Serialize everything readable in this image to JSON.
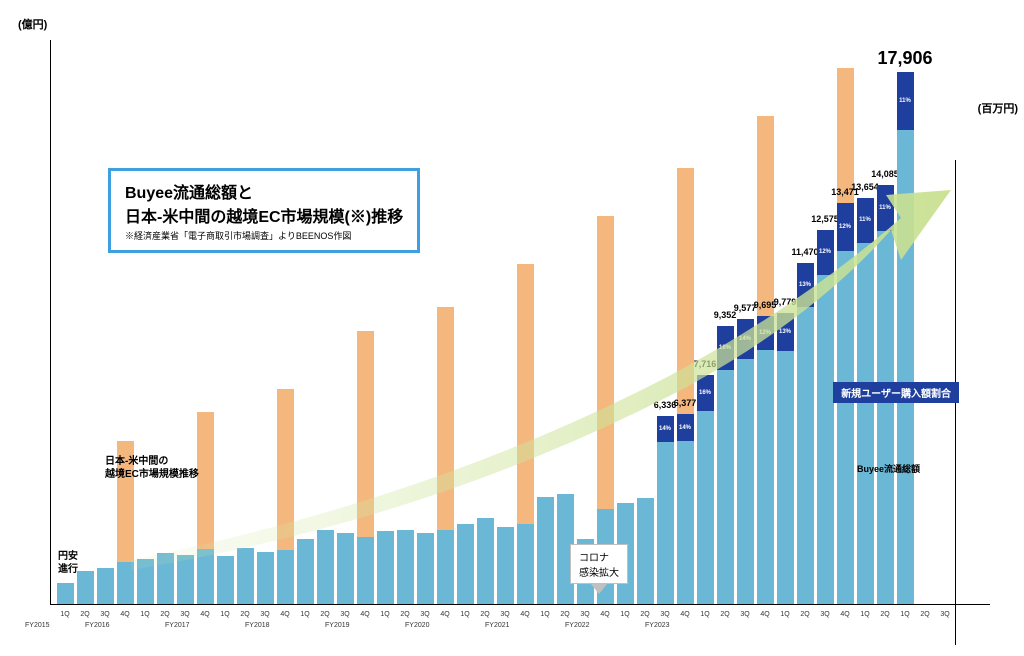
{
  "axes": {
    "left_label": "(億円)",
    "right_label": "(百万円)"
  },
  "title_box": {
    "line1": "Buyee流通総額と",
    "line2": "日本-米中間の越境EC市場規模(※)推移",
    "note": "※経済産業省「電子商取引市場調査」よりBEENOS作図"
  },
  "annotations": {
    "yen_weak": "円安\n進行",
    "market_label": "日本-米中間の\n越境EC市場規模推移",
    "corona": "コロナ\n感染拡大",
    "new_user": "新規ユーザー購入額割合",
    "buyee_gmv": "Buyee流通総額"
  },
  "chart": {
    "type": "bar",
    "max_blue": 19000,
    "max_orange": 590,
    "colors": {
      "blue_main": "#6bb8d6",
      "blue_dark": "#1f3f9e",
      "orange": "#f4b77e",
      "arrow": "#d4e8a8",
      "title_border": "#3ea0e0"
    },
    "big_label": "17,906",
    "bars": [
      {
        "q": "1Q",
        "blue": 700,
        "orange": 0,
        "year": "FY2015"
      },
      {
        "q": "2Q",
        "blue": 1100,
        "orange": 0
      },
      {
        "q": "3Q",
        "blue": 1200,
        "orange": 0
      },
      {
        "q": "4Q",
        "blue": 1400,
        "orange": 170,
        "year": "FY2016"
      },
      {
        "q": "1Q",
        "blue": 1500,
        "orange": 0
      },
      {
        "q": "2Q",
        "blue": 1700,
        "orange": 0
      },
      {
        "q": "3Q",
        "blue": 1650,
        "orange": 0
      },
      {
        "q": "4Q",
        "blue": 1850,
        "orange": 200,
        "year": "FY2017"
      },
      {
        "q": "1Q",
        "blue": 1600,
        "orange": 0
      },
      {
        "q": "2Q",
        "blue": 1900,
        "orange": 0
      },
      {
        "q": "3Q",
        "blue": 1750,
        "orange": 0
      },
      {
        "q": "4Q",
        "blue": 1800,
        "orange": 225,
        "year": "FY2018"
      },
      {
        "q": "1Q",
        "blue": 2200,
        "orange": 0
      },
      {
        "q": "2Q",
        "blue": 2500,
        "orange": 0
      },
      {
        "q": "3Q",
        "blue": 2400,
        "orange": 0
      },
      {
        "q": "4Q",
        "blue": 2250,
        "orange": 285,
        "year": "FY2019"
      },
      {
        "q": "1Q",
        "blue": 2450,
        "orange": 0
      },
      {
        "q": "2Q",
        "blue": 2500,
        "orange": 0
      },
      {
        "q": "3Q",
        "blue": 2400,
        "orange": 0
      },
      {
        "q": "4Q",
        "blue": 2500,
        "orange": 310,
        "year": "FY2020"
      },
      {
        "q": "1Q",
        "blue": 2700,
        "orange": 0
      },
      {
        "q": "2Q",
        "blue": 2900,
        "orange": 0
      },
      {
        "q": "3Q",
        "blue": 2600,
        "orange": 0
      },
      {
        "q": "4Q",
        "blue": 2700,
        "orange": 355,
        "year": "FY2021"
      },
      {
        "q": "1Q",
        "blue": 3600,
        "orange": 0
      },
      {
        "q": "2Q",
        "blue": 3700,
        "orange": 0
      },
      {
        "q": "3Q",
        "blue": 2200,
        "orange": 0
      },
      {
        "q": "4Q",
        "blue": 3200,
        "orange": 405,
        "year": "FY2022"
      },
      {
        "q": "1Q",
        "blue": 3400,
        "orange": 0
      },
      {
        "q": "2Q",
        "blue": 3550,
        "orange": 0
      },
      {
        "q": "3Q",
        "blue": 6336,
        "orange": 0,
        "label": "6,336",
        "pct": "14%"
      },
      {
        "q": "4Q",
        "blue": 6377,
        "orange": 455,
        "year": "FY2023",
        "label": "6,377",
        "pct": "14%"
      },
      {
        "q": "1Q",
        "blue": 7716,
        "orange": 0,
        "label": "7,716",
        "pct": "16%"
      },
      {
        "q": "2Q",
        "blue": 9352,
        "orange": 0,
        "label": "9,352",
        "pct": "16%"
      },
      {
        "q": "3Q",
        "blue": 9577,
        "orange": 0,
        "label": "9,577",
        "pct": "14%"
      },
      {
        "q": "4Q",
        "blue": 9695,
        "orange": 510,
        "label": "9,695",
        "pct": "12%"
      },
      {
        "q": "1Q",
        "blue": 9779,
        "orange": 0,
        "label": "9,779",
        "pct": "13%"
      },
      {
        "q": "2Q",
        "blue": 11470,
        "orange": 0,
        "label": "11,470",
        "pct": "13%"
      },
      {
        "q": "3Q",
        "blue": 12575,
        "orange": 0,
        "label": "12,575",
        "pct": "12%"
      },
      {
        "q": "4Q",
        "blue": 13471,
        "orange": 560,
        "label": "13,471",
        "pct": "12%"
      },
      {
        "q": "1Q",
        "blue": 13654,
        "orange": 0,
        "label": "13,654",
        "pct": "11%"
      },
      {
        "q": "2Q",
        "blue": 14085,
        "orange": 0,
        "label": "14,085",
        "pct": "11%"
      },
      {
        "q": "1Q",
        "blue": 17906,
        "orange": 0,
        "label": "17,906",
        "pct": "11%",
        "big": true
      },
      {
        "q": "2Q",
        "blue": 0,
        "orange": 0
      },
      {
        "q": "3Q",
        "blue": 0,
        "orange": 0
      }
    ]
  }
}
